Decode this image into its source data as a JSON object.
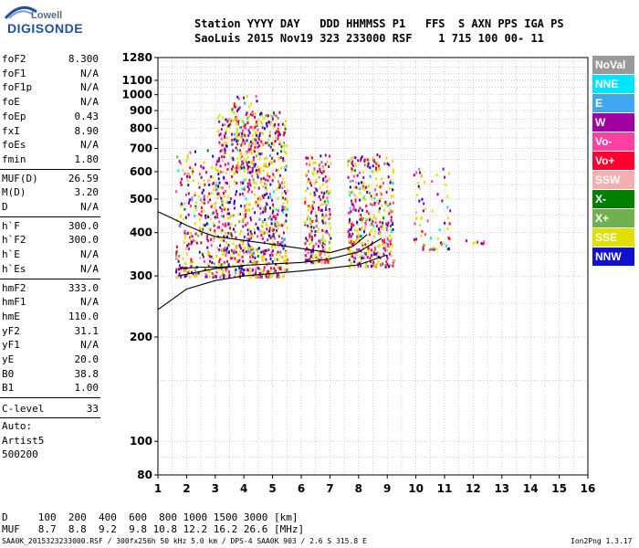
{
  "logo": {
    "line1": "Lowell",
    "line2": "DIGISONDE"
  },
  "header": {
    "row1": "Station YYYY DAY   DDD HHMMSS P1   FFS  S AXN PPS IGA PS",
    "row2": "SaoLuis 2015 Nov19 323 233000 RSF    1 715 100 00- 11"
  },
  "params_group1": [
    {
      "key": "foF2",
      "value": "8.300"
    },
    {
      "key": "foF1",
      "value": "N/A"
    },
    {
      "key": "foF1p",
      "value": "N/A"
    },
    {
      "key": "foE",
      "value": "N/A"
    },
    {
      "key": "foEp",
      "value": "0.43"
    },
    {
      "key": "fxI",
      "value": "8.90"
    },
    {
      "key": "foEs",
      "value": "N/A"
    },
    {
      "key": "fmin",
      "value": "1.80"
    }
  ],
  "params_group2": [
    {
      "key": "MUF(D)",
      "value": "26.59"
    },
    {
      "key": "M(D)",
      "value": "3.20"
    },
    {
      "key": "D",
      "value": "N/A"
    }
  ],
  "params_group3": [
    {
      "key": "h`F",
      "value": "300.0"
    },
    {
      "key": "h`F2",
      "value": "300.0"
    },
    {
      "key": "h`E",
      "value": "N/A"
    },
    {
      "key": "h`Es",
      "value": "N/A"
    }
  ],
  "params_group4": [
    {
      "key": "hmF2",
      "value": "333.0"
    },
    {
      "key": "hmF1",
      "value": "N/A"
    },
    {
      "key": "hmE",
      "value": "110.0"
    },
    {
      "key": "yF2",
      "value": "31.1"
    },
    {
      "key": "yF1",
      "value": "N/A"
    },
    {
      "key": "yE",
      "value": "20.0"
    },
    {
      "key": "B0",
      "value": "38.8"
    },
    {
      "key": "B1",
      "value": "1.00"
    }
  ],
  "clevel": {
    "key": "C-level",
    "value": "33"
  },
  "auto": {
    "line1": "Auto:",
    "line2": "Artist5",
    "line3": "500200"
  },
  "muf_table": {
    "row1": "D     100  200  400  600  800 1000 1500 3000 [km]",
    "row2": "MUF   8.7  8.8  9.2  9.8 10.8 12.2 16.2 26.6 [MHz]"
  },
  "footer": {
    "left": "SAA0K_2015323233000.RSF / 300fx256h 50 kHz 5.0 km / DPS-4 SAA0K 903 / 2.6 S 315.8 E",
    "right": "Ion2Png 1.3.17"
  },
  "legend": [
    {
      "label": "NoVal",
      "bg": "#9a9a9a",
      "fg": "#ffffff"
    },
    {
      "label": "NNE",
      "bg": "#00e5ff",
      "fg": "#ffffff"
    },
    {
      "label": "E",
      "bg": "#3fa7f0",
      "fg": "#ffffff"
    },
    {
      "label": "W",
      "bg": "#a000a0",
      "fg": "#ffffff"
    },
    {
      "label": "Vo-",
      "bg": "#ff40a0",
      "fg": "#ffffff"
    },
    {
      "label": "Vo+",
      "bg": "#ff0030",
      "fg": "#ffffff"
    },
    {
      "label": "SSW",
      "bg": "#f4b0b0",
      "fg": "#ffffff"
    },
    {
      "label": "X-",
      "bg": "#008000",
      "fg": "#ffffff"
    },
    {
      "label": "X+",
      "bg": "#70b050",
      "fg": "#ffffff"
    },
    {
      "label": "SSE",
      "bg": "#e0e000",
      "fg": "#ffffff"
    },
    {
      "label": "NNW",
      "bg": "#1010d0",
      "fg": "#ffffff"
    }
  ],
  "chart_data": {
    "type": "scatter",
    "xlim": [
      1,
      16
    ],
    "ylim": [
      80,
      1280
    ],
    "x_scale": "linear",
    "y_scale": "log",
    "grid": true,
    "x_ticks": [
      "1",
      "2",
      "3",
      "4",
      "5",
      "6",
      "7",
      "8",
      "9",
      "10",
      "11",
      "12",
      "13",
      "14",
      "15",
      "16"
    ],
    "y_ticks": [
      {
        "value": 80,
        "label": "80"
      },
      {
        "value": 100,
        "label": "100"
      },
      {
        "value": 200,
        "label": "200"
      },
      {
        "value": 300,
        "label": "300"
      },
      {
        "value": 400,
        "label": "400"
      },
      {
        "value": 500,
        "label": "500"
      },
      {
        "value": 600,
        "label": "600"
      },
      {
        "value": 700,
        "label": "700"
      },
      {
        "value": 800,
        "label": "800"
      },
      {
        "value": 900,
        "label": "900"
      },
      {
        "value": 1000,
        "label": "1000"
      },
      {
        "value": 1100,
        "label": "1100"
      },
      {
        "value": 1280,
        "label": "1280"
      }
    ],
    "scatter_clusters": [
      {
        "x": [
          1.6,
          3.0
        ],
        "y": [
          300,
          700
        ],
        "density": 260
      },
      {
        "x": [
          3.0,
          5.5
        ],
        "y": [
          300,
          900
        ],
        "density": 900
      },
      {
        "x": [
          3.5,
          4.6
        ],
        "y": [
          600,
          1000
        ],
        "density": 120
      },
      {
        "x": [
          6.1,
          7.0
        ],
        "y": [
          330,
          680
        ],
        "density": 260
      },
      {
        "x": [
          7.6,
          9.2
        ],
        "y": [
          320,
          680
        ],
        "density": 420
      },
      {
        "x": [
          9.9,
          11.2
        ],
        "y": [
          360,
          620
        ],
        "density": 70
      },
      {
        "x": [
          11.4,
          12.4
        ],
        "y": [
          375,
          390
        ],
        "density": 8
      }
    ],
    "curves": [
      {
        "name": "trace_lower",
        "points": [
          [
            1,
            240
          ],
          [
            2,
            275
          ],
          [
            3,
            291
          ],
          [
            4,
            300
          ],
          [
            5,
            305
          ],
          [
            6,
            310
          ],
          [
            7,
            316
          ],
          [
            8,
            323
          ],
          [
            9,
            345
          ]
        ]
      },
      {
        "name": "trace_mid",
        "points": [
          [
            1.7,
            300
          ],
          [
            3,
            315
          ],
          [
            4,
            322
          ],
          [
            5,
            325
          ],
          [
            6,
            328
          ],
          [
            7,
            336
          ],
          [
            8,
            352
          ],
          [
            8.8,
            385
          ]
        ]
      },
      {
        "name": "trace_upper",
        "points": [
          [
            1,
            460
          ],
          [
            1.5,
            440
          ],
          [
            2,
            420
          ],
          [
            2.6,
            400
          ],
          [
            3,
            390
          ],
          [
            4,
            380
          ],
          [
            5,
            370
          ],
          [
            6,
            360
          ],
          [
            7,
            350
          ],
          [
            7.8,
            365
          ],
          [
            8.3,
            395
          ]
        ]
      },
      {
        "name": "trace_bottom_left",
        "points": [
          [
            1.7,
            315
          ],
          [
            2.5,
            318
          ],
          [
            3,
            318
          ],
          [
            4,
            320
          ]
        ]
      }
    ]
  }
}
